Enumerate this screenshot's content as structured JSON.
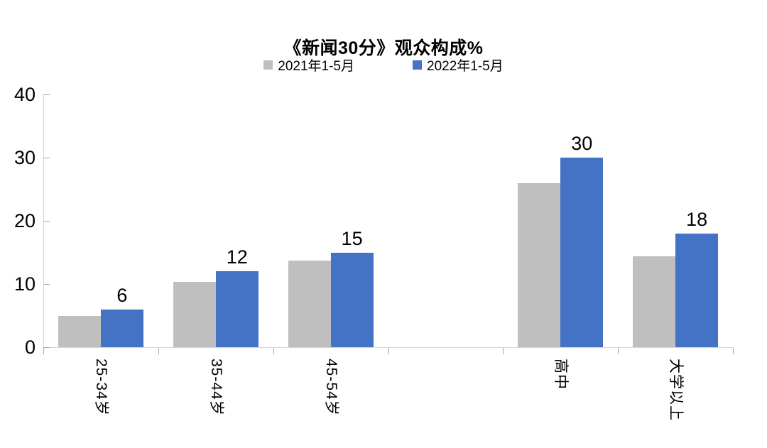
{
  "title": "《新闻30分》观众构成%",
  "legend": [
    {
      "label": "2021年1-5月",
      "color": "#BFBFBF"
    },
    {
      "label": "2022年1-5月",
      "color": "#4472C4"
    }
  ],
  "colors": {
    "background": "#FFFFFF",
    "axis_line": "#D6D6D6",
    "tick_mark": "#A6A6A6",
    "text": "#000000",
    "series_2021": "#BFBFBF",
    "series_2022": "#4472C4"
  },
  "chart_data": {
    "type": "bar",
    "title": "《新闻30分》观众构成%",
    "categories": [
      "25-34岁",
      "35-44岁",
      "45-54岁",
      "",
      "高中",
      "大学以上"
    ],
    "series": [
      {
        "name": "2021年1-5月",
        "color": "#BFBFBF",
        "values": [
          5,
          10.3,
          13.7,
          null,
          26,
          14.4
        ],
        "data_labels": [
          "",
          "",
          "",
          "",
          "",
          ""
        ]
      },
      {
        "name": "2022年1-5月",
        "color": "#4472C4",
        "values": [
          6,
          12,
          15,
          null,
          30,
          18
        ],
        "data_labels": [
          "6",
          "12",
          "15",
          "",
          "30",
          "18"
        ]
      }
    ],
    "xlabel": "",
    "ylabel": "",
    "ylim": [
      0,
      40
    ],
    "yticks": [
      0,
      10,
      20,
      30,
      40
    ],
    "grid": false,
    "legend_position": "top",
    "category_label_rotation_deg": 90,
    "data_labels_shown_for": "2022年1-5月"
  }
}
